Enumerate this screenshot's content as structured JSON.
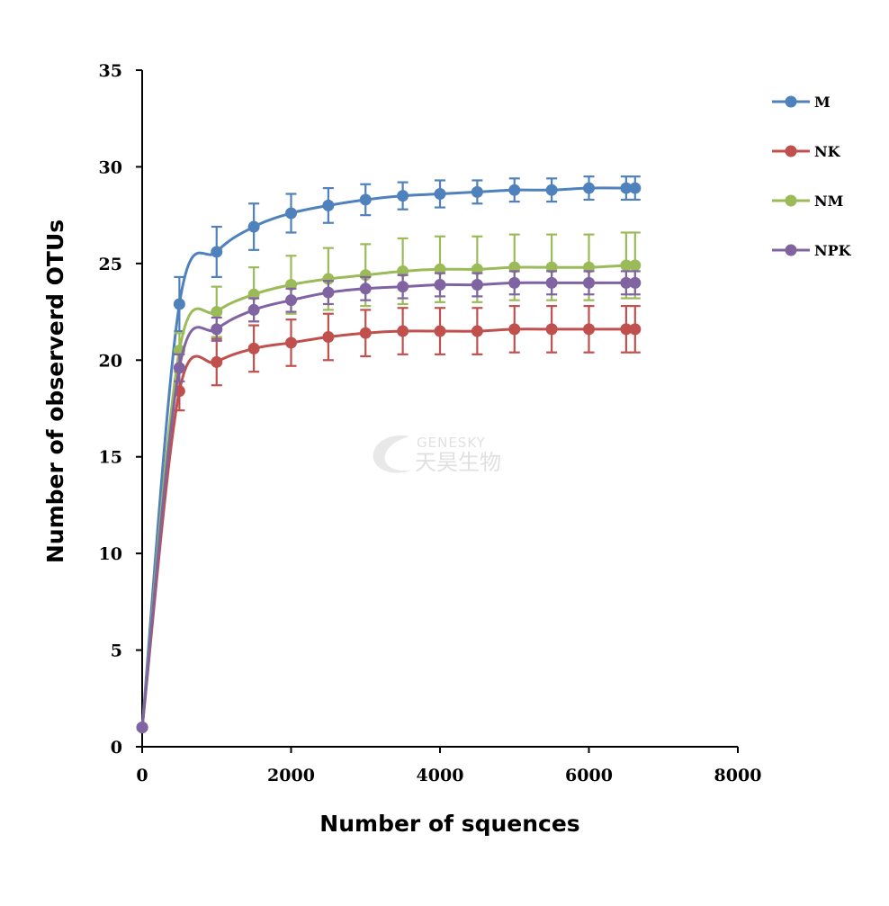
{
  "chart_data": {
    "type": "line",
    "title": "",
    "xlabel": "Number of squences",
    "ylabel": "Number of observerd OTUs",
    "xlim": [
      0,
      8000
    ],
    "ylim": [
      0,
      35
    ],
    "xticks": [
      0,
      2000,
      4000,
      6000,
      8000
    ],
    "yticks": [
      0,
      5,
      10,
      15,
      20,
      25,
      30,
      35
    ],
    "grid": false,
    "legend_position": "top-right",
    "series": [
      {
        "name": "M",
        "color": "#4f81bd",
        "x": [
          1,
          500,
          1000,
          1500,
          2000,
          2500,
          3000,
          3500,
          4000,
          4500,
          5000,
          5500,
          6000,
          6500,
          6620
        ],
        "y": [
          1,
          22.9,
          25.6,
          26.9,
          27.6,
          28.0,
          28.3,
          28.5,
          28.6,
          28.7,
          28.8,
          28.8,
          28.9,
          28.9,
          28.9
        ],
        "error": [
          0,
          1.4,
          1.3,
          1.2,
          1.0,
          0.9,
          0.8,
          0.7,
          0.7,
          0.6,
          0.6,
          0.6,
          0.6,
          0.6,
          0.6
        ]
      },
      {
        "name": "NK",
        "color": "#c0504d",
        "x": [
          1,
          500,
          1000,
          1500,
          2000,
          2500,
          3000,
          3500,
          4000,
          4500,
          5000,
          5500,
          6000,
          6500,
          6620
        ],
        "y": [
          1,
          18.4,
          19.9,
          20.6,
          20.9,
          21.2,
          21.4,
          21.5,
          21.5,
          21.5,
          21.6,
          21.6,
          21.6,
          21.6,
          21.6
        ],
        "error": [
          0,
          1.0,
          1.2,
          1.2,
          1.2,
          1.2,
          1.2,
          1.2,
          1.2,
          1.2,
          1.2,
          1.2,
          1.2,
          1.2,
          1.2
        ]
      },
      {
        "name": "NM",
        "color": "#9bbb59",
        "x": [
          1,
          500,
          1000,
          1500,
          2000,
          2500,
          3000,
          3500,
          4000,
          4500,
          5000,
          5500,
          6000,
          6500,
          6620
        ],
        "y": [
          1,
          20.5,
          22.5,
          23.4,
          23.9,
          24.2,
          24.4,
          24.6,
          24.7,
          24.7,
          24.8,
          24.8,
          24.8,
          24.9,
          24.9
        ],
        "error": [
          0,
          0.9,
          1.3,
          1.4,
          1.5,
          1.6,
          1.6,
          1.7,
          1.7,
          1.7,
          1.7,
          1.7,
          1.7,
          1.7,
          1.7
        ]
      },
      {
        "name": "NPK",
        "color": "#8064a2",
        "x": [
          1,
          500,
          1000,
          1500,
          2000,
          2500,
          3000,
          3500,
          4000,
          4500,
          5000,
          5500,
          6000,
          6500,
          6620
        ],
        "y": [
          1,
          19.6,
          21.6,
          22.6,
          23.1,
          23.5,
          23.7,
          23.8,
          23.9,
          23.9,
          24.0,
          24.0,
          24.0,
          24.0,
          24.0
        ],
        "error": [
          0,
          0.7,
          0.6,
          0.6,
          0.6,
          0.6,
          0.6,
          0.6,
          0.6,
          0.6,
          0.6,
          0.6,
          0.6,
          0.6,
          0.6
        ]
      }
    ]
  },
  "watermark": {
    "line1": "GENESKY",
    "line2": "天昊生物",
    "icon": "swirl-logo-icon"
  }
}
